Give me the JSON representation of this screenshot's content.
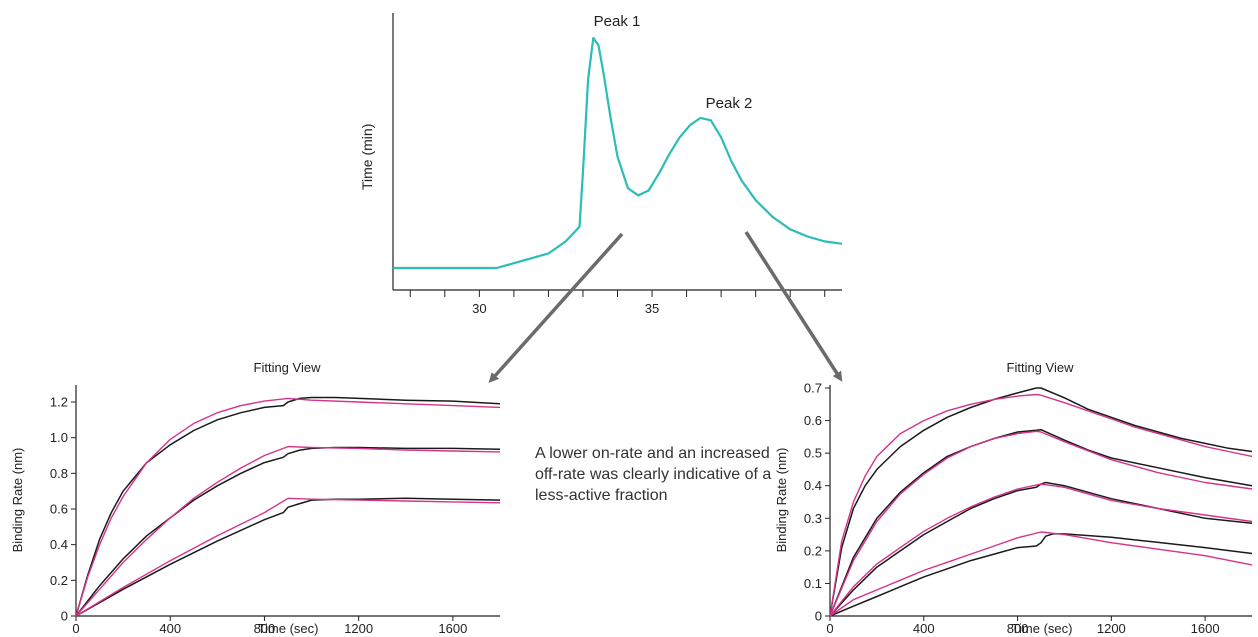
{
  "caption": "A lower on-rate and an increased off-rate was clearly indicative of a less-active fraction",
  "colors": {
    "chromatogram": "#2bbdb7",
    "fit": "#d6338a",
    "data": "#1a1a1a",
    "arrow": "#6b6b6b",
    "axis": "#222222"
  },
  "chart_data": [
    {
      "type": "line",
      "title": "",
      "xlabel": "",
      "ylabel": "Time (min)",
      "xlim": [
        27.5,
        40.5
      ],
      "xticks": [
        30,
        35
      ],
      "xtick_labels": [
        "30",
        "35"
      ],
      "annotations": [
        "Peak 1",
        "Peak 2"
      ],
      "peaks": [
        {
          "label": "Peak 1",
          "x": 33.4,
          "y": 0.94
        },
        {
          "label": "Peak 2",
          "x": 36.8,
          "y": 0.61
        }
      ],
      "series": [
        {
          "x": [
            27.5,
            28.5,
            29.5,
            30.0,
            30.5,
            31.0,
            31.5,
            32.0,
            32.5,
            32.9,
            33.0,
            33.15,
            33.3,
            33.45,
            33.6,
            33.8,
            34.0,
            34.3,
            34.6,
            34.9,
            35.2,
            35.5,
            35.8,
            36.1,
            36.4,
            36.7,
            37.0,
            37.3,
            37.6,
            38.0,
            38.5,
            39.0,
            39.5,
            40.0,
            40.5
          ],
          "y": [
            0.0,
            0.0,
            0.0,
            0.0,
            0.0,
            0.02,
            0.04,
            0.06,
            0.11,
            0.17,
            0.4,
            0.78,
            0.95,
            0.92,
            0.8,
            0.62,
            0.46,
            0.33,
            0.3,
            0.32,
            0.39,
            0.47,
            0.54,
            0.59,
            0.62,
            0.61,
            0.54,
            0.44,
            0.36,
            0.28,
            0.21,
            0.16,
            0.13,
            0.11,
            0.1
          ]
        }
      ]
    },
    {
      "type": "line",
      "title": "Fitting View",
      "xlabel": "Time (sec)",
      "ylabel": "Binding Rate (nm)",
      "xlim": [
        0,
        1800
      ],
      "ylim": [
        0,
        1.3
      ],
      "xticks": [
        0,
        400,
        800,
        1200,
        1600
      ],
      "xtick_labels": [
        "0",
        "400",
        "800",
        "1200",
        "1600"
      ],
      "yticks": [
        0,
        0.2,
        0.4,
        0.6,
        0.8,
        1.0,
        1.2
      ],
      "ytick_labels": [
        "0",
        "0.2",
        "0.4",
        "0.6",
        "0.8",
        "1.0",
        "1.2"
      ],
      "series": [
        {
          "kind": "data",
          "x": [
            0,
            50,
            100,
            150,
            200,
            300,
            400,
            500,
            600,
            700,
            800,
            880,
            900,
            950,
            1000,
            1100,
            1200,
            1400,
            1600,
            1800
          ],
          "y": [
            0,
            0.23,
            0.43,
            0.58,
            0.7,
            0.86,
            0.96,
            1.04,
            1.1,
            1.14,
            1.17,
            1.18,
            1.2,
            1.22,
            1.225,
            1.225,
            1.22,
            1.21,
            1.205,
            1.19
          ]
        },
        {
          "kind": "fit",
          "x": [
            0,
            50,
            100,
            150,
            200,
            300,
            400,
            500,
            600,
            700,
            800,
            900,
            1000,
            1200,
            1400,
            1600,
            1800
          ],
          "y": [
            0,
            0.22,
            0.4,
            0.55,
            0.67,
            0.86,
            0.99,
            1.08,
            1.14,
            1.18,
            1.205,
            1.22,
            1.21,
            1.2,
            1.19,
            1.18,
            1.17
          ]
        },
        {
          "kind": "data",
          "x": [
            0,
            100,
            200,
            300,
            400,
            500,
            600,
            700,
            800,
            880,
            900,
            950,
            1000,
            1100,
            1200,
            1400,
            1600,
            1800
          ],
          "y": [
            0,
            0.17,
            0.32,
            0.45,
            0.55,
            0.65,
            0.73,
            0.8,
            0.86,
            0.89,
            0.91,
            0.93,
            0.94,
            0.945,
            0.945,
            0.94,
            0.94,
            0.935
          ]
        },
        {
          "kind": "fit",
          "x": [
            0,
            100,
            200,
            300,
            400,
            500,
            600,
            700,
            800,
            900,
            1000,
            1200,
            1400,
            1600,
            1800
          ],
          "y": [
            0,
            0.15,
            0.3,
            0.43,
            0.55,
            0.66,
            0.75,
            0.83,
            0.9,
            0.95,
            0.945,
            0.94,
            0.93,
            0.925,
            0.92
          ]
        },
        {
          "kind": "data",
          "x": [
            0,
            200,
            400,
            600,
            800,
            880,
            900,
            950,
            1000,
            1100,
            1200,
            1400,
            1600,
            1800
          ],
          "y": [
            0,
            0.15,
            0.29,
            0.42,
            0.54,
            0.58,
            0.61,
            0.63,
            0.65,
            0.655,
            0.655,
            0.66,
            0.655,
            0.65
          ]
        },
        {
          "kind": "fit",
          "x": [
            0,
            200,
            400,
            600,
            800,
            900,
            1000,
            1200,
            1400,
            1600,
            1800
          ],
          "y": [
            0,
            0.16,
            0.31,
            0.45,
            0.58,
            0.66,
            0.655,
            0.65,
            0.645,
            0.64,
            0.635
          ]
        }
      ]
    },
    {
      "type": "line",
      "title": "Fitting View",
      "xlabel": "Time (sec)",
      "ylabel": "Binding Rate (nm)",
      "xlim": [
        0,
        1800
      ],
      "ylim": [
        0,
        0.7
      ],
      "xticks": [
        0,
        400,
        800,
        1200,
        1600
      ],
      "xtick_labels": [
        "0",
        "400",
        "800",
        "1200",
        "1600"
      ],
      "yticks": [
        0,
        0.1,
        0.2,
        0.3,
        0.4,
        0.5,
        0.6,
        0.7
      ],
      "ytick_labels": [
        "0",
        "0.1",
        "0.2",
        "0.3",
        "0.4",
        "0.5",
        "0.6",
        "0.7"
      ],
      "series": [
        {
          "kind": "data",
          "x": [
            0,
            50,
            100,
            150,
            200,
            300,
            400,
            500,
            600,
            700,
            800,
            880,
            900,
            1000,
            1100,
            1200,
            1300,
            1400,
            1500,
            1600,
            1700,
            1800
          ],
          "y": [
            0,
            0.21,
            0.33,
            0.4,
            0.45,
            0.52,
            0.57,
            0.61,
            0.64,
            0.665,
            0.685,
            0.7,
            0.7,
            0.67,
            0.635,
            0.61,
            0.585,
            0.565,
            0.545,
            0.53,
            0.515,
            0.505
          ]
        },
        {
          "kind": "fit",
          "x": [
            0,
            50,
            100,
            150,
            200,
            300,
            400,
            500,
            600,
            700,
            800,
            880,
            900,
            1000,
            1100,
            1200,
            1300,
            1400,
            1500,
            1600,
            1700,
            1800
          ],
          "y": [
            0,
            0.23,
            0.35,
            0.43,
            0.49,
            0.56,
            0.6,
            0.63,
            0.65,
            0.665,
            0.675,
            0.68,
            0.678,
            0.655,
            0.63,
            0.605,
            0.58,
            0.56,
            0.54,
            0.52,
            0.505,
            0.49
          ]
        },
        {
          "kind": "data",
          "x": [
            0,
            100,
            200,
            300,
            400,
            500,
            600,
            700,
            800,
            880,
            900,
            1000,
            1100,
            1200,
            1400,
            1600,
            1800
          ],
          "y": [
            0,
            0.18,
            0.3,
            0.38,
            0.44,
            0.49,
            0.52,
            0.545,
            0.565,
            0.57,
            0.572,
            0.54,
            0.51,
            0.485,
            0.455,
            0.425,
            0.4
          ]
        },
        {
          "kind": "fit",
          "x": [
            0,
            100,
            200,
            300,
            400,
            500,
            600,
            700,
            800,
            880,
            900,
            1000,
            1200,
            1400,
            1600,
            1800
          ],
          "y": [
            0,
            0.17,
            0.29,
            0.375,
            0.435,
            0.485,
            0.52,
            0.545,
            0.56,
            0.567,
            0.565,
            0.535,
            0.48,
            0.44,
            0.41,
            0.39
          ]
        },
        {
          "kind": "data",
          "x": [
            0,
            100,
            200,
            300,
            400,
            500,
            600,
            700,
            800,
            880,
            900,
            920,
            1000,
            1200,
            1400,
            1600,
            1800
          ],
          "y": [
            0,
            0.08,
            0.15,
            0.2,
            0.25,
            0.29,
            0.33,
            0.36,
            0.385,
            0.395,
            0.405,
            0.41,
            0.4,
            0.36,
            0.33,
            0.3,
            0.285
          ]
        },
        {
          "kind": "fit",
          "x": [
            0,
            100,
            200,
            300,
            400,
            500,
            600,
            700,
            800,
            900,
            1000,
            1200,
            1400,
            1600,
            1800
          ],
          "y": [
            0,
            0.09,
            0.16,
            0.21,
            0.26,
            0.3,
            0.335,
            0.365,
            0.39,
            0.405,
            0.395,
            0.355,
            0.33,
            0.31,
            0.29
          ]
        },
        {
          "kind": "data",
          "x": [
            0,
            100,
            200,
            300,
            400,
            500,
            600,
            700,
            800,
            880,
            900,
            920,
            950,
            1000,
            1200,
            1400,
            1600,
            1800
          ],
          "y": [
            0,
            0.03,
            0.06,
            0.09,
            0.12,
            0.145,
            0.17,
            0.19,
            0.21,
            0.215,
            0.225,
            0.245,
            0.252,
            0.252,
            0.242,
            0.226,
            0.21,
            0.192
          ]
        },
        {
          "kind": "fit",
          "x": [
            0,
            100,
            200,
            300,
            400,
            500,
            600,
            700,
            800,
            900,
            1000,
            1200,
            1400,
            1600,
            1800
          ],
          "y": [
            0,
            0.05,
            0.08,
            0.11,
            0.14,
            0.165,
            0.19,
            0.215,
            0.24,
            0.258,
            0.25,
            0.225,
            0.205,
            0.185,
            0.157
          ]
        }
      ]
    }
  ]
}
